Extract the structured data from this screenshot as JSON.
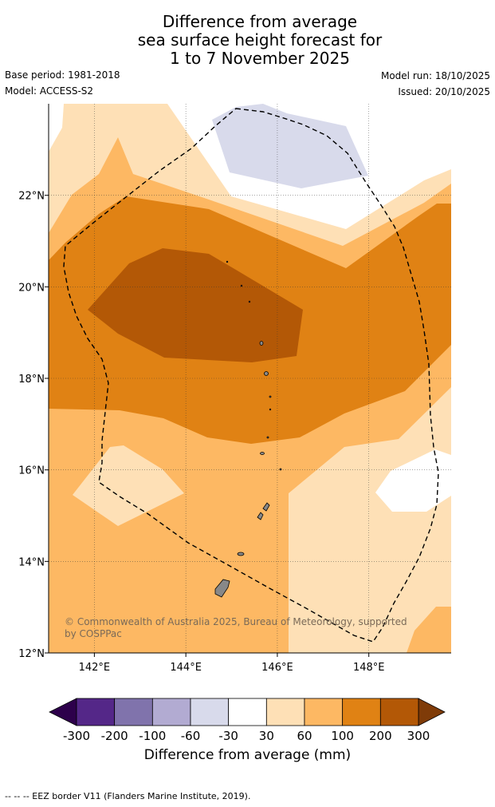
{
  "title": {
    "line1": "Difference from average",
    "line2": "sea surface height forecast for",
    "line3": "1 to 7 November 2025"
  },
  "meta": {
    "base_period": "Base period: 1981-2018",
    "model": "Model: ACCESS-S2",
    "model_run": "Model run: 18/10/2025",
    "issued": "Issued: 20/10/2025"
  },
  "map": {
    "lon_range": [
      141.0,
      149.8
    ],
    "lat_range": [
      12.0,
      24.0
    ],
    "lon_ticks": [
      {
        "value": 142,
        "label": "142°E"
      },
      {
        "value": 144,
        "label": "144°E"
      },
      {
        "value": 146,
        "label": "146°E"
      },
      {
        "value": 148,
        "label": "148°E"
      }
    ],
    "lat_ticks": [
      {
        "value": 22,
        "label": "22°N"
      },
      {
        "value": 20,
        "label": "20°N"
      },
      {
        "value": 18,
        "label": "18°N"
      },
      {
        "value": 16,
        "label": "16°N"
      },
      {
        "value": 14,
        "label": "14°N"
      },
      {
        "value": 12,
        "label": "12°N"
      }
    ]
  },
  "credit": "© Commonwealth of Australia 2025, Bureau of Meteorology, supported by COSPPac",
  "colorbar": {
    "label": "Difference from average (mm)",
    "tick_labels": [
      "-300",
      "-200",
      "-100",
      "-60",
      "-30",
      "30",
      "60",
      "100",
      "200",
      "300"
    ],
    "extend_low_color": "#2d004b",
    "extend_high_color": "#7f3b08",
    "colors": [
      "#542788",
      "#8073ac",
      "#b2abd2",
      "#d8daeb",
      "#ffffff",
      "#fee0b6",
      "#fdb863",
      "#e08214",
      "#b35806"
    ]
  },
  "footnote": "--  --  -- EEZ border V11 (Flanders Marine Institute, 2019)."
}
